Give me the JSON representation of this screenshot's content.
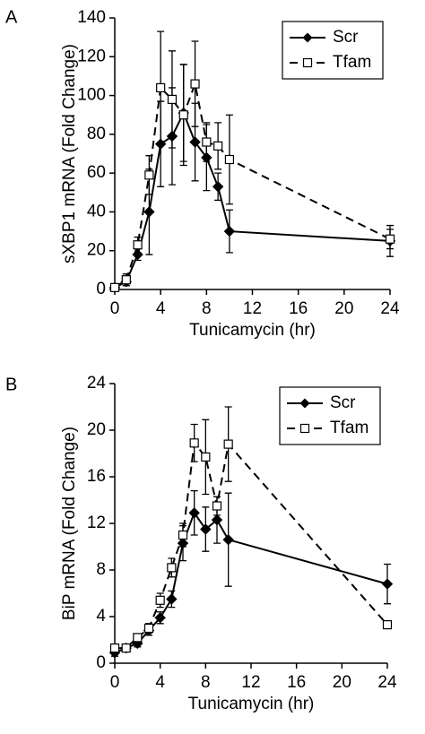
{
  "chart_data": [
    {
      "type": "line",
      "label": "A",
      "xlabel": "Tunicamycin (hr)",
      "ylabel": "sXBP1 mRNA  (Fold Change)",
      "x": [
        0,
        1,
        2,
        3,
        4,
        5,
        6,
        7,
        8,
        9,
        10,
        24
      ],
      "xlim": [
        0,
        24
      ],
      "xticks": [
        0,
        4,
        8,
        12,
        16,
        20,
        24
      ],
      "ylim": [
        0,
        140
      ],
      "yticks": [
        0,
        20,
        40,
        60,
        80,
        100,
        120,
        140
      ],
      "legend": "top-right",
      "series": [
        {
          "name": "Scr",
          "color": "#000000",
          "marker": "diamond",
          "dashed": false,
          "values": [
            1,
            4,
            18,
            40,
            75,
            79,
            91,
            76,
            68,
            53,
            30,
            25
          ],
          "errors": [
            1,
            2,
            3,
            22,
            22,
            25,
            25,
            20,
            17,
            7,
            11,
            8
          ]
        },
        {
          "name": "Tfam",
          "color": "#000000",
          "marker": "square",
          "dashed": true,
          "values": [
            1,
            5,
            23,
            59,
            104,
            98,
            90,
            106,
            76,
            74,
            67,
            26
          ],
          "errors": [
            1,
            3,
            4,
            10,
            29,
            25,
            26,
            22,
            10,
            12,
            23,
            5
          ]
        }
      ]
    },
    {
      "type": "line",
      "label": "B",
      "xlabel": "Tunicamycin (hr)",
      "ylabel": "BiP mRNA  (Fold Change)",
      "x": [
        0,
        1,
        2,
        3,
        4,
        5,
        6,
        7,
        8,
        9,
        10,
        24
      ],
      "xlim": [
        0,
        24
      ],
      "xticks": [
        0,
        4,
        8,
        12,
        16,
        20,
        24
      ],
      "ylim": [
        0,
        24
      ],
      "yticks": [
        0,
        4,
        8,
        12,
        16,
        20,
        24
      ],
      "legend": "top-right",
      "series": [
        {
          "name": "Scr",
          "color": "#000000",
          "marker": "diamond",
          "dashed": false,
          "values": [
            0.9,
            1.3,
            1.7,
            2.8,
            3.9,
            5.5,
            10.3,
            12.9,
            11.5,
            12.3,
            10.6,
            6.8
          ],
          "errors": [
            0.3,
            0.2,
            0.3,
            0.4,
            0.5,
            0.7,
            1.5,
            1.9,
            1.9,
            2,
            4,
            1.7
          ]
        },
        {
          "name": "Tfam",
          "color": "#000000",
          "marker": "square",
          "dashed": true,
          "values": [
            1.3,
            1.3,
            2.2,
            3,
            5.4,
            8.2,
            11,
            18.9,
            17.7,
            13.5,
            18.8,
            3.3
          ],
          "errors": [
            0.3,
            0.2,
            0.3,
            0.4,
            0.6,
            0.8,
            1,
            1.6,
            3.2,
            0.8,
            3.2,
            0.3
          ]
        }
      ]
    }
  ]
}
